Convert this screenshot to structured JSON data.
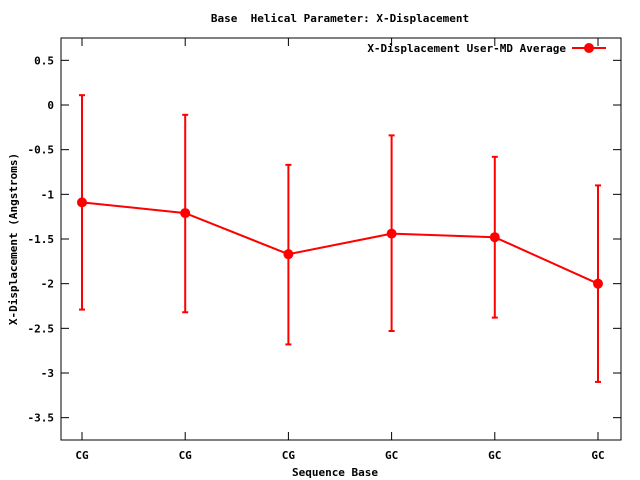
{
  "chart_data": {
    "type": "line",
    "title": "Base  Helical Parameter: X-Displacement",
    "xlabel": "Sequence Base",
    "ylabel": "X-Displacement (Angstroms)",
    "categories": [
      "CG",
      "CG",
      "CG",
      "GC",
      "GC",
      "GC"
    ],
    "ylim": [
      -3.75,
      0.75
    ],
    "yticks": [
      0.5,
      0,
      -0.5,
      -1,
      -1.5,
      -2,
      -2.5,
      -3,
      -3.5
    ],
    "ytick_labels": [
      "0.5",
      "0",
      "-0.5",
      "-1",
      "-1.5",
      "-2",
      "-2.5",
      "-3",
      "-3.5"
    ],
    "grid": false,
    "legend_position": "top-right",
    "series": [
      {
        "name": "X-Displacement User-MD Average",
        "color": "#ff0000",
        "values": [
          -1.09,
          -1.21,
          -1.67,
          -1.44,
          -1.48,
          -2.0
        ],
        "error_low": [
          -2.29,
          -2.32,
          -2.68,
          -2.53,
          -2.38,
          -3.1
        ],
        "error_high": [
          0.11,
          -0.11,
          -0.67,
          -0.34,
          -0.58,
          -0.9
        ]
      }
    ]
  }
}
